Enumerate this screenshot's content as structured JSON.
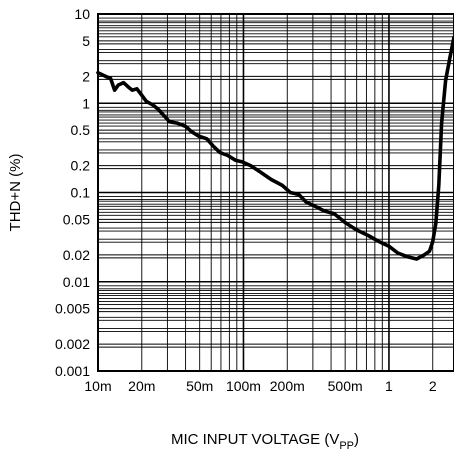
{
  "chart_data": {
    "type": "line",
    "x_scale": "log",
    "y_scale": "log",
    "xlabel": "MIC INPUT VOLTAGE (V",
    "xlabel_subscript": "PP",
    "xlabel_close": ")",
    "ylabel": "THD+N (%)",
    "xlim": [
      0.01,
      2.8
    ],
    "ylim": [
      0.001,
      10
    ],
    "grid": true,
    "x_ticks": [
      {
        "value": 0.01,
        "label": "10m"
      },
      {
        "value": 0.02,
        "label": "20m"
      },
      {
        "value": 0.05,
        "label": "50m"
      },
      {
        "value": 0.1,
        "label": "100m"
      },
      {
        "value": 0.2,
        "label": "200m"
      },
      {
        "value": 0.5,
        "label": "500m"
      },
      {
        "value": 1,
        "label": "1"
      },
      {
        "value": 2,
        "label": "2"
      }
    ],
    "y_ticks": [
      {
        "value": 10,
        "label": "10"
      },
      {
        "value": 5,
        "label": "5"
      },
      {
        "value": 2,
        "label": "2"
      },
      {
        "value": 1,
        "label": "1"
      },
      {
        "value": 0.5,
        "label": "0.5"
      },
      {
        "value": 0.2,
        "label": "0.2"
      },
      {
        "value": 0.1,
        "label": "0.1"
      },
      {
        "value": 0.05,
        "label": "0.05"
      },
      {
        "value": 0.02,
        "label": "0.02"
      },
      {
        "value": 0.01,
        "label": "0.01"
      },
      {
        "value": 0.005,
        "label": "0.005"
      },
      {
        "value": 0.002,
        "label": "0.002"
      },
      {
        "value": 0.001,
        "label": "0.001"
      }
    ],
    "series": [
      {
        "color": "#000000",
        "x": [
          0.01,
          0.0113,
          0.0122,
          0.013,
          0.0138,
          0.015,
          0.0163,
          0.0172,
          0.0185,
          0.0195,
          0.0215,
          0.024,
          0.026,
          0.029,
          0.031,
          0.035,
          0.04,
          0.044,
          0.049,
          0.056,
          0.062,
          0.069,
          0.078,
          0.088,
          0.098,
          0.112,
          0.13,
          0.155,
          0.185,
          0.21,
          0.24,
          0.27,
          0.31,
          0.36,
          0.42,
          0.5,
          0.6,
          0.72,
          0.86,
          1.0,
          1.15,
          1.35,
          1.55,
          1.75,
          1.9,
          2.0,
          2.1,
          2.2,
          2.3,
          2.45,
          2.62,
          2.8
        ],
        "y": [
          2.2,
          2.0,
          1.9,
          1.4,
          1.6,
          1.7,
          1.5,
          1.4,
          1.45,
          1.3,
          1.05,
          0.95,
          0.85,
          0.7,
          0.62,
          0.6,
          0.55,
          0.48,
          0.43,
          0.4,
          0.33,
          0.28,
          0.26,
          0.23,
          0.22,
          0.2,
          0.17,
          0.14,
          0.12,
          0.1,
          0.095,
          0.078,
          0.07,
          0.062,
          0.058,
          0.046,
          0.038,
          0.033,
          0.028,
          0.025,
          0.021,
          0.019,
          0.018,
          0.02,
          0.022,
          0.028,
          0.045,
          0.12,
          0.6,
          1.8,
          3.2,
          5.5
        ]
      }
    ]
  }
}
